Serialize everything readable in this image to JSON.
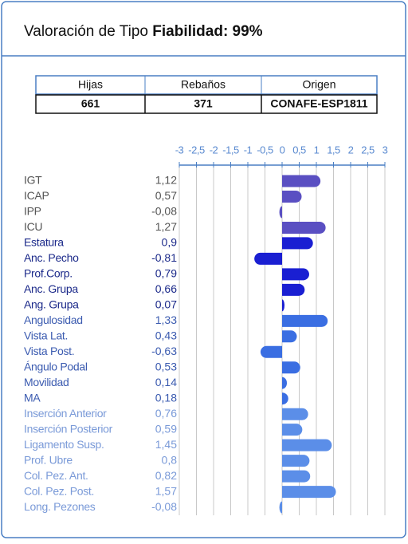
{
  "header": {
    "title": "Valoración de Tipo",
    "title_bold": "Fiabilidad: 99%"
  },
  "table": {
    "headers": [
      "Hijas",
      "Rebaños",
      "Origen"
    ],
    "rows": [
      [
        "661",
        "371",
        "CONAFE-ESP1811"
      ]
    ]
  },
  "chart_data": {
    "type": "hbar",
    "categories": [
      "IGT",
      "ICAP",
      "IPP",
      "ICU",
      "Estatura",
      "Anc. Pecho",
      "Prof.Corp.",
      "Anc. Grupa",
      "Ang. Grupa",
      "Angulosidad",
      "Vista Lat.",
      "Vista Post.",
      "Ángulo Podal",
      "Movilidad",
      "MA",
      "Inserción Anterior",
      "Inserción Posterior",
      "Ligamento Susp.",
      "Prof. Ubre",
      "Col. Pez. Ant.",
      "Col. Pez. Post.",
      "Long. Pezones"
    ],
    "values": [
      1.12,
      0.57,
      -0.08,
      1.27,
      0.9,
      -0.81,
      0.79,
      0.66,
      0.07,
      1.33,
      0.43,
      -0.63,
      0.53,
      0.14,
      0.18,
      0.76,
      0.59,
      1.45,
      0.8,
      0.82,
      1.57,
      -0.08
    ],
    "value_labels": [
      "1,12",
      "0,57",
      "-0,08",
      "1,27",
      "0,9",
      "-0,81",
      "0,79",
      "0,66",
      "0,07",
      "1,33",
      "0,43",
      "-0,63",
      "0,53",
      "0,14",
      "0,18",
      "0,76",
      "0,59",
      "1,45",
      "0,8",
      "0,82",
      "1,57",
      "-0,08"
    ],
    "colors": [
      "#5a4fc2",
      "#5a4fc2",
      "#5a4fc2",
      "#5a4fc2",
      "#1a1fd2",
      "#1a1fd2",
      "#1a1fd2",
      "#1a1fd2",
      "#1a1fd2",
      "#3a6ee2",
      "#3a6ee2",
      "#3a6ee2",
      "#3a6ee2",
      "#3a6ee2",
      "#3a6ee2",
      "#5b8ee8",
      "#5b8ee8",
      "#5b8ee8",
      "#5b8ee8",
      "#5b8ee8",
      "#5b8ee8",
      "#5b8ee8"
    ],
    "label_colors": [
      "#555555",
      "#555555",
      "#555555",
      "#555555",
      "#1c2a8a",
      "#1c2a8a",
      "#1c2a8a",
      "#1c2a8a",
      "#1c2a8a",
      "#3b5bb0",
      "#3b5bb0",
      "#3b5bb0",
      "#3b5bb0",
      "#3b5bb0",
      "#3b5bb0",
      "#7a9ad8",
      "#7a9ad8",
      "#7a9ad8",
      "#7a9ad8",
      "#7a9ad8",
      "#7a9ad8",
      "#7a9ad8"
    ],
    "xlim": [
      -3,
      3
    ],
    "xticks": [
      -3,
      {
        "value": -2.5,
        "label": "-2,5"
      },
      -2,
      {
        "value": -1.5,
        "label": "-1,5"
      },
      -1,
      {
        "value": -0.5,
        "label": "-0,5"
      },
      0,
      {
        "value": 0.5,
        "label": "0,5"
      },
      1,
      {
        "value": 1.5,
        "label": "1,5"
      },
      2,
      {
        "value": 2.5,
        "label": "2,5"
      },
      3
    ],
    "grid": true
  }
}
